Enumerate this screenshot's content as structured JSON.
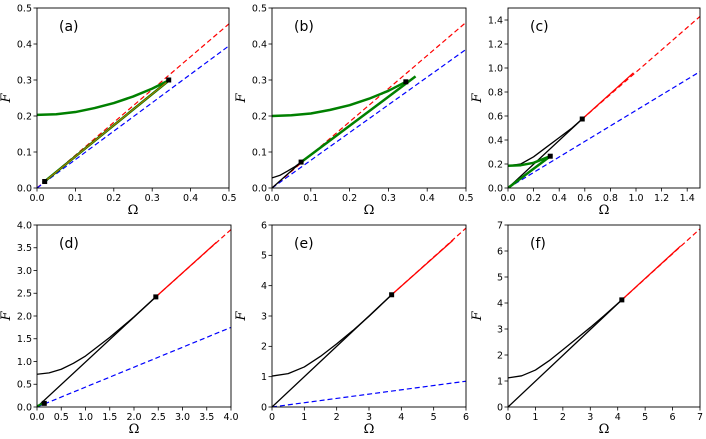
{
  "colors": {
    "red": "#ff0000",
    "blue": "#0000ff",
    "green": "#008000",
    "black": "#000000"
  },
  "chart_data": [
    {
      "label": "(a)",
      "type": "line",
      "xlabel": "Ω",
      "ylabel": "F",
      "xlim": [
        0,
        0.5
      ],
      "ylim": [
        0,
        0.5
      ],
      "xticks": [
        "0.0",
        "0.1",
        "0.2",
        "0.3",
        "0.4",
        "0.5"
      ],
      "yticks": [
        "0.0",
        "0.1",
        "0.2",
        "0.3",
        "0.4",
        "0.5"
      ],
      "series": [
        {
          "name": "red-dashed",
          "color": "red",
          "style": "dashed",
          "width": 1.2,
          "points": [
            [
              0,
              0
            ],
            [
              0.5,
              0.456
            ]
          ]
        },
        {
          "name": "blue-dashed",
          "color": "blue",
          "style": "dashed",
          "width": 1.2,
          "points": [
            [
              0,
              0
            ],
            [
              0.5,
              0.395
            ]
          ]
        },
        {
          "name": "green-upper",
          "color": "green",
          "style": "solid",
          "width": 2.5,
          "points": [
            [
              0,
              0.203
            ],
            [
              0.05,
              0.205
            ],
            [
              0.1,
              0.211
            ],
            [
              0.15,
              0.222
            ],
            [
              0.2,
              0.236
            ],
            [
              0.25,
              0.254
            ],
            [
              0.3,
              0.276
            ],
            [
              0.345,
              0.3
            ]
          ]
        },
        {
          "name": "green-lower",
          "color": "green",
          "style": "solid",
          "width": 2.5,
          "points": [
            [
              0.015,
              0.014
            ],
            [
              0.345,
              0.3
            ]
          ]
        },
        {
          "name": "orange-overlay",
          "color": "#c07000",
          "style": "solid",
          "width": 1,
          "points": [
            [
              0.015,
              0.014
            ],
            [
              0.345,
              0.3
            ]
          ]
        }
      ],
      "markers": [
        [
          0.02,
          0.018
        ],
        [
          0.343,
          0.3
        ]
      ]
    },
    {
      "label": "(b)",
      "type": "line",
      "xlabel": "Ω",
      "ylabel": "F",
      "xlim": [
        0,
        0.5
      ],
      "ylim": [
        0,
        0.5
      ],
      "xticks": [
        "0.0",
        "0.1",
        "0.2",
        "0.3",
        "0.4",
        "0.5"
      ],
      "yticks": [
        "0.0",
        "0.1",
        "0.2",
        "0.3",
        "0.4",
        "0.5"
      ],
      "series": [
        {
          "name": "red-dashed",
          "color": "red",
          "style": "dashed",
          "width": 1.2,
          "points": [
            [
              0,
              0
            ],
            [
              0.5,
              0.46
            ]
          ]
        },
        {
          "name": "blue-dashed",
          "color": "blue",
          "style": "dashed",
          "width": 1.2,
          "points": [
            [
              0,
              0
            ],
            [
              0.5,
              0.385
            ]
          ]
        },
        {
          "name": "black-curve",
          "color": "black",
          "style": "solid",
          "width": 1.3,
          "points": [
            [
              0,
              0.028
            ],
            [
              0.02,
              0.035
            ],
            [
              0.04,
              0.047
            ],
            [
              0.06,
              0.06
            ],
            [
              0.075,
              0.072
            ]
          ]
        },
        {
          "name": "black-line",
          "color": "black",
          "style": "solid",
          "width": 1.3,
          "points": [
            [
              0,
              0
            ],
            [
              0.075,
              0.072
            ]
          ]
        },
        {
          "name": "green-upper",
          "color": "green",
          "style": "solid",
          "width": 2.5,
          "points": [
            [
              0,
              0.2
            ],
            [
              0.05,
              0.202
            ],
            [
              0.1,
              0.207
            ],
            [
              0.15,
              0.217
            ],
            [
              0.2,
              0.23
            ],
            [
              0.25,
              0.248
            ],
            [
              0.3,
              0.27
            ],
            [
              0.345,
              0.295
            ]
          ]
        },
        {
          "name": "green-lower",
          "color": "green",
          "style": "solid",
          "width": 2.5,
          "points": [
            [
              0.075,
              0.072
            ],
            [
              0.37,
              0.31
            ]
          ]
        }
      ],
      "markers": [
        [
          0.075,
          0.072
        ],
        [
          0.345,
          0.295
        ]
      ]
    },
    {
      "label": "(c)",
      "type": "line",
      "xlabel": "Ω",
      "ylabel": "F",
      "xlim": [
        0,
        1.5
      ],
      "ylim": [
        0,
        1.5
      ],
      "xticks": [
        "0.0",
        "0.2",
        "0.4",
        "0.6",
        "0.8",
        "1.0",
        "1.2",
        "1.4"
      ],
      "yticks": [
        "0.0",
        "0.2",
        "0.4",
        "0.6",
        "0.8",
        "1.0",
        "1.2",
        "1.4"
      ],
      "series": [
        {
          "name": "red-dashed",
          "color": "red",
          "style": "dashed",
          "width": 1.2,
          "points": [
            [
              0.58,
              0.575
            ],
            [
              1.5,
              1.43
            ]
          ]
        },
        {
          "name": "red-solid",
          "color": "red",
          "style": "solid",
          "width": 1.3,
          "points": [
            [
              0.58,
              0.575
            ],
            [
              0.98,
              0.96
            ]
          ]
        },
        {
          "name": "blue-dashed",
          "color": "blue",
          "style": "dashed",
          "width": 1.2,
          "points": [
            [
              0,
              0
            ],
            [
              1.5,
              0.97
            ]
          ]
        },
        {
          "name": "black-curve",
          "color": "black",
          "style": "solid",
          "width": 1.3,
          "points": [
            [
              0,
              0.185
            ],
            [
              0.1,
              0.2
            ],
            [
              0.2,
              0.26
            ],
            [
              0.3,
              0.34
            ],
            [
              0.4,
              0.42
            ],
            [
              0.5,
              0.5
            ],
            [
              0.58,
              0.575
            ]
          ]
        },
        {
          "name": "black-line",
          "color": "black",
          "style": "solid",
          "width": 1.3,
          "points": [
            [
              0,
              0
            ],
            [
              0.58,
              0.575
            ]
          ]
        },
        {
          "name": "green-upper",
          "color": "green",
          "style": "solid",
          "width": 2.5,
          "points": [
            [
              0,
              0.185
            ],
            [
              0.1,
              0.19
            ],
            [
              0.2,
              0.21
            ],
            [
              0.33,
              0.265
            ]
          ]
        },
        {
          "name": "green-lower",
          "color": "green",
          "style": "solid",
          "width": 2.5,
          "points": [
            [
              0,
              0
            ],
            [
              0.33,
              0.265
            ]
          ]
        }
      ],
      "markers": [
        [
          0.58,
          0.575
        ],
        [
          0.33,
          0.265
        ]
      ]
    },
    {
      "label": "(d)",
      "type": "line",
      "xlabel": "Ω",
      "ylabel": "F",
      "xlim": [
        0,
        4.0
      ],
      "ylim": [
        0,
        4.0
      ],
      "xticks": [
        "0.0",
        "0.5",
        "1.0",
        "1.5",
        "2.0",
        "2.5",
        "3.0",
        "3.5",
        "4.0"
      ],
      "yticks": [
        "0.0",
        "0.5",
        "1.0",
        "1.5",
        "2.0",
        "2.5",
        "3.0",
        "3.5",
        "4.0"
      ],
      "series": [
        {
          "name": "red-dashed",
          "color": "red",
          "style": "dashed",
          "width": 1.2,
          "points": [
            [
              2.45,
              2.42
            ],
            [
              4.0,
              3.9
            ]
          ]
        },
        {
          "name": "red-solid",
          "color": "red",
          "style": "solid",
          "width": 1.3,
          "points": [
            [
              2.45,
              2.42
            ],
            [
              3.7,
              3.62
            ]
          ]
        },
        {
          "name": "blue-dashed",
          "color": "blue",
          "style": "dashed",
          "width": 1.2,
          "points": [
            [
              0,
              0
            ],
            [
              4.0,
              1.75
            ]
          ]
        },
        {
          "name": "black-curve",
          "color": "black",
          "style": "solid",
          "width": 1.3,
          "points": [
            [
              0,
              0.72
            ],
            [
              0.25,
              0.75
            ],
            [
              0.5,
              0.83
            ],
            [
              0.75,
              0.96
            ],
            [
              1.0,
              1.12
            ],
            [
              1.5,
              1.53
            ],
            [
              2.0,
              1.98
            ],
            [
              2.45,
              2.42
            ]
          ]
        },
        {
          "name": "black-line",
          "color": "black",
          "style": "solid",
          "width": 1.3,
          "points": [
            [
              0,
              0
            ],
            [
              2.45,
              2.42
            ]
          ]
        },
        {
          "name": "green-small",
          "color": "green",
          "style": "solid",
          "width": 2,
          "points": [
            [
              0,
              0.02
            ],
            [
              0.15,
              0.09
            ]
          ]
        }
      ],
      "markers": [
        [
          2.45,
          2.42
        ],
        [
          0.15,
          0.08
        ]
      ]
    },
    {
      "label": "(e)",
      "type": "line",
      "xlabel": "Ω",
      "ylabel": "F",
      "xlim": [
        0,
        6
      ],
      "ylim": [
        0,
        6
      ],
      "xticks": [
        "0",
        "1",
        "2",
        "3",
        "4",
        "5",
        "6"
      ],
      "yticks": [
        "0",
        "1",
        "2",
        "3",
        "4",
        "5",
        "6"
      ],
      "series": [
        {
          "name": "red-dashed",
          "color": "red",
          "style": "dashed",
          "width": 1.2,
          "points": [
            [
              3.7,
              3.7
            ],
            [
              6.0,
              5.9
            ]
          ]
        },
        {
          "name": "red-solid",
          "color": "red",
          "style": "solid",
          "width": 1.3,
          "points": [
            [
              3.7,
              3.7
            ],
            [
              5.6,
              5.5
            ]
          ]
        },
        {
          "name": "blue-dashed",
          "color": "blue",
          "style": "dashed",
          "width": 1.2,
          "points": [
            [
              0,
              0
            ],
            [
              6.0,
              0.85
            ]
          ]
        },
        {
          "name": "black-curve",
          "color": "black",
          "style": "solid",
          "width": 1.3,
          "points": [
            [
              0,
              1.02
            ],
            [
              0.5,
              1.1
            ],
            [
              1.0,
              1.32
            ],
            [
              1.5,
              1.67
            ],
            [
              2.0,
              2.08
            ],
            [
              2.5,
              2.52
            ],
            [
              3.0,
              2.99
            ],
            [
              3.7,
              3.7
            ]
          ]
        },
        {
          "name": "black-line",
          "color": "black",
          "style": "solid",
          "width": 1.3,
          "points": [
            [
              0,
              0
            ],
            [
              3.7,
              3.7
            ]
          ]
        }
      ],
      "markers": [
        [
          3.7,
          3.7
        ]
      ]
    },
    {
      "label": "(f)",
      "type": "line",
      "xlabel": "Ω",
      "ylabel": "F",
      "xlim": [
        0,
        7
      ],
      "ylim": [
        0,
        7
      ],
      "xticks": [
        "0",
        "1",
        "2",
        "3",
        "4",
        "5",
        "6",
        "7"
      ],
      "yticks": [
        "0",
        "1",
        "2",
        "3",
        "4",
        "5",
        "6",
        "7"
      ],
      "series": [
        {
          "name": "red-dashed",
          "color": "red",
          "style": "dashed",
          "width": 1.2,
          "points": [
            [
              4.15,
              4.12
            ],
            [
              7.0,
              6.85
            ]
          ]
        },
        {
          "name": "red-solid",
          "color": "red",
          "style": "solid",
          "width": 1.3,
          "points": [
            [
              4.15,
              4.12
            ],
            [
              6.3,
              6.2
            ]
          ]
        },
        {
          "name": "black-curve",
          "color": "black",
          "style": "solid",
          "width": 1.3,
          "points": [
            [
              0,
              1.12
            ],
            [
              0.5,
              1.2
            ],
            [
              1.0,
              1.42
            ],
            [
              1.5,
              1.78
            ],
            [
              2.0,
              2.2
            ],
            [
              2.5,
              2.63
            ],
            [
              3.0,
              3.06
            ],
            [
              3.5,
              3.51
            ],
            [
              4.15,
              4.12
            ]
          ]
        },
        {
          "name": "black-line",
          "color": "black",
          "style": "solid",
          "width": 1.3,
          "points": [
            [
              0,
              0
            ],
            [
              4.15,
              4.12
            ]
          ]
        }
      ],
      "markers": [
        [
          4.15,
          4.12
        ]
      ]
    }
  ]
}
